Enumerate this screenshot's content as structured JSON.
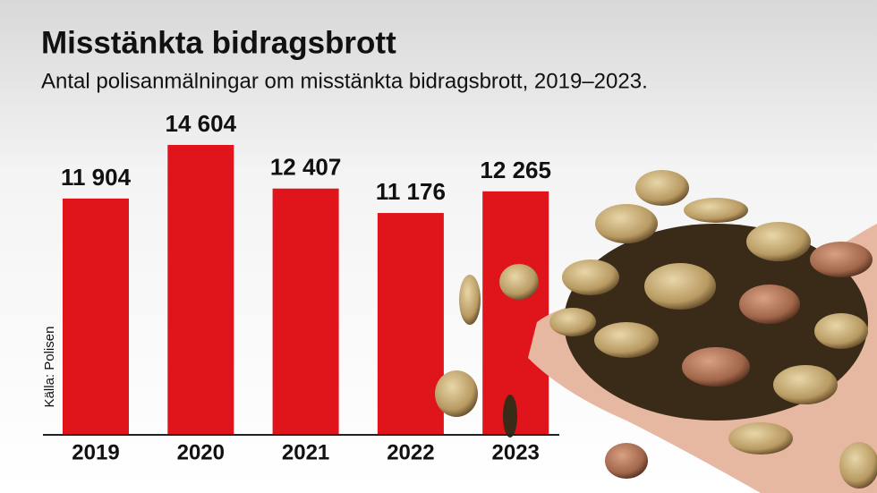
{
  "chart_data": {
    "type": "bar",
    "title": "Misstänkta bidragsbrott",
    "subtitle": "Antal polisanmälningar om misstänkta bidragsbrott, 2019–2023.",
    "source": "Källa: Polisen",
    "categories": [
      "2019",
      "2020",
      "2021",
      "2022",
      "2023"
    ],
    "values": [
      11904,
      14604,
      12407,
      11176,
      12265
    ],
    "value_labels": [
      "11 904",
      "14 604",
      "12 407",
      "11 176",
      "12 265"
    ],
    "color": "#e0141b"
  }
}
